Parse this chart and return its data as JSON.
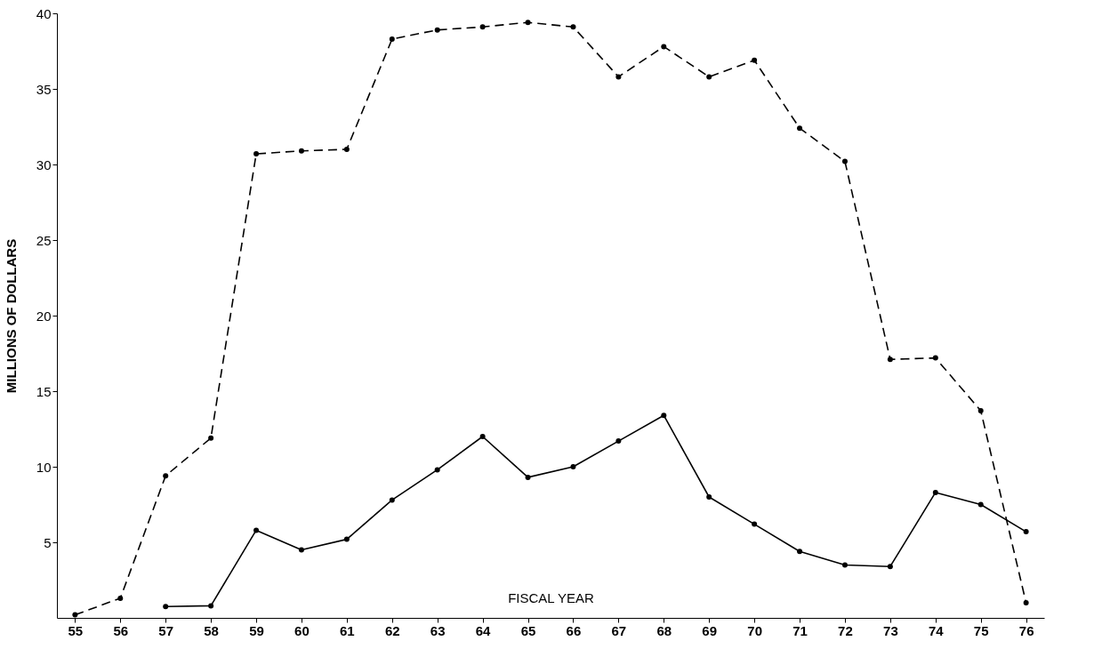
{
  "chart_data": {
    "type": "line",
    "xlabel": "FISCAL YEAR",
    "ylabel": "MILLIONS OF DOLLARS",
    "x": [
      55,
      56,
      57,
      58,
      59,
      60,
      61,
      62,
      63,
      64,
      65,
      66,
      67,
      68,
      69,
      70,
      71,
      72,
      73,
      74,
      75,
      76
    ],
    "series": [
      {
        "color": "#000000",
        "line_style": "dashed",
        "values": [
          0.2,
          1.3,
          9.4,
          11.9,
          30.7,
          30.9,
          31.0,
          38.3,
          38.9,
          39.1,
          39.4,
          39.1,
          35.8,
          37.8,
          35.8,
          36.9,
          32.4,
          30.2,
          17.1,
          17.2,
          13.7,
          1.0
        ]
      },
      {
        "color": "#000000",
        "line_style": "solid",
        "values": [
          null,
          null,
          0.75,
          0.8,
          5.8,
          4.5,
          5.2,
          7.8,
          9.8,
          12.0,
          9.3,
          10.0,
          11.7,
          13.4,
          8.0,
          6.2,
          4.4,
          3.5,
          3.4,
          8.3,
          7.5,
          5.7
        ]
      }
    ],
    "xlim": [
      54.6,
      76.4
    ],
    "ylim": [
      0,
      40
    ],
    "xticks": [
      55,
      56,
      57,
      58,
      59,
      60,
      61,
      62,
      63,
      64,
      65,
      66,
      67,
      68,
      69,
      70,
      71,
      72,
      73,
      74,
      75,
      76
    ],
    "yticks": [
      5,
      10,
      15,
      20,
      25,
      30,
      35,
      40
    ],
    "marker": "circle",
    "grid": false
  }
}
